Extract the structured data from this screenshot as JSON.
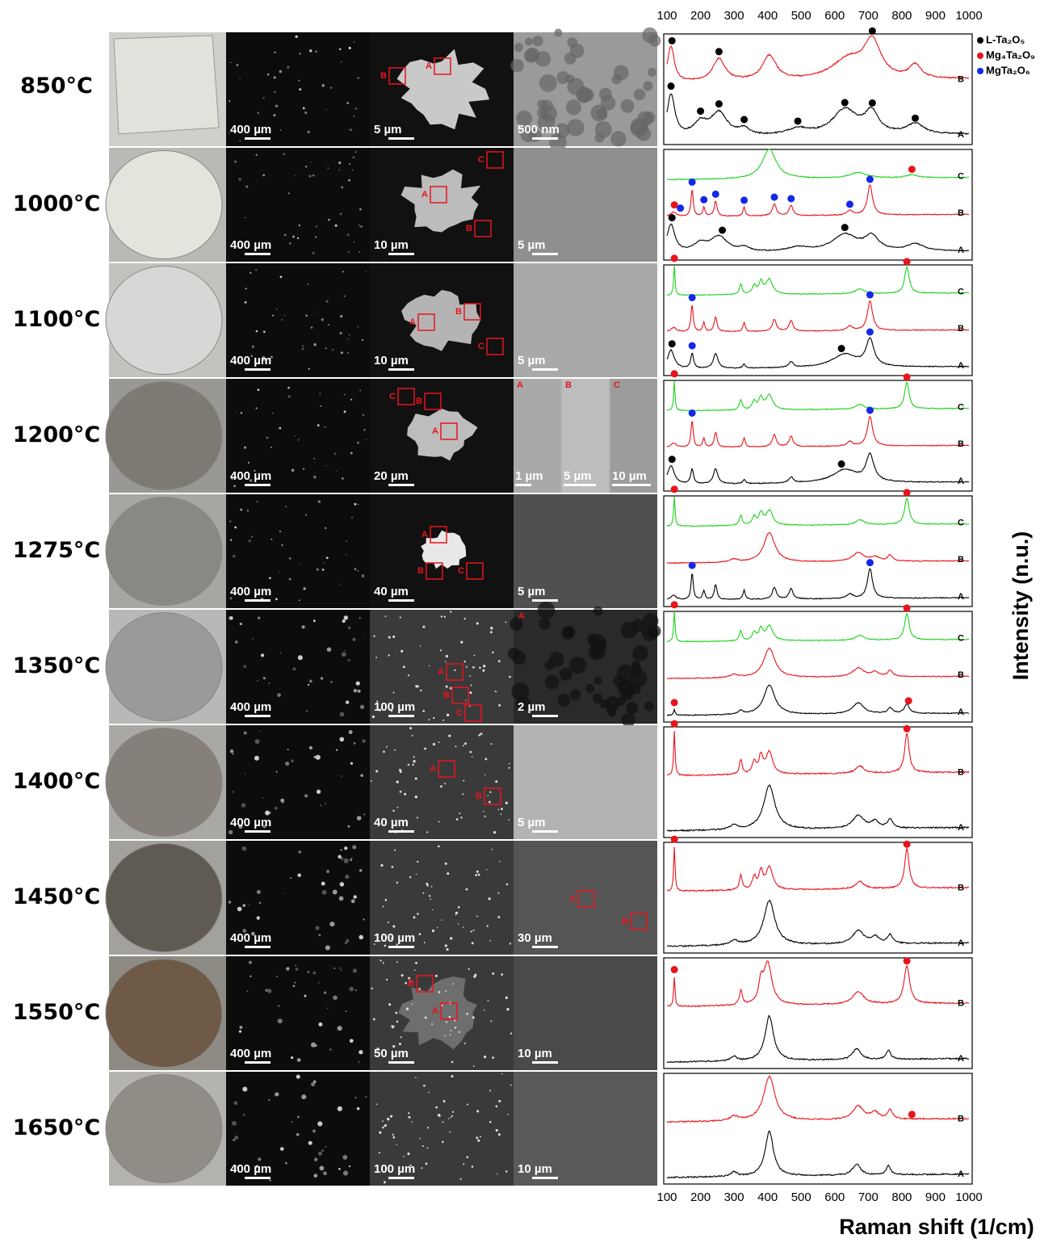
{
  "rows": [
    {
      "temperature": "850°C",
      "scale_bars": [
        "400 µm",
        "5 µm",
        "500 nm"
      ],
      "regions": [
        "A",
        "B"
      ],
      "spectra": [
        {
          "name": "B",
          "color": "#e8141c"
        },
        {
          "name": "A",
          "color": "#000000"
        }
      ]
    },
    {
      "temperature": "1000°C",
      "scale_bars": [
        "400 µm",
        "10 µm",
        "5 µm"
      ],
      "regions": [
        "C",
        "A",
        "B"
      ],
      "spectra": [
        {
          "name": "C",
          "color": "#1ed21e"
        },
        {
          "name": "B",
          "color": "#e8141c"
        },
        {
          "name": "A",
          "color": "#000000"
        }
      ]
    },
    {
      "temperature": "1100°C",
      "scale_bars": [
        "400 µm",
        "10 µm",
        "5 µm"
      ],
      "regions": [
        "A",
        "B",
        "C"
      ],
      "spectra": [
        {
          "name": "C",
          "color": "#1ed21e"
        },
        {
          "name": "B",
          "color": "#e8141c"
        },
        {
          "name": "A",
          "color": "#000000"
        }
      ]
    },
    {
      "temperature": "1200°C",
      "scale_bars": [
        "400 µm",
        "20 µm",
        "1 µm",
        "5 µm",
        "10 µm"
      ],
      "regions": [
        "C",
        "B",
        "A",
        "A",
        "B",
        "C"
      ],
      "spectra": [
        {
          "name": "C",
          "color": "#1ed21e"
        },
        {
          "name": "B",
          "color": "#e8141c"
        },
        {
          "name": "A",
          "color": "#000000"
        }
      ]
    },
    {
      "temperature": "1275°C",
      "scale_bars": [
        "400 µm",
        "40 µm",
        "5 µm"
      ],
      "regions": [
        "A",
        "B",
        "C"
      ],
      "spectra": [
        {
          "name": "C",
          "color": "#1ed21e"
        },
        {
          "name": "B",
          "color": "#e8141c"
        },
        {
          "name": "A",
          "color": "#000000"
        }
      ]
    },
    {
      "temperature": "1350°C",
      "scale_bars": [
        "400 µm",
        "100 µm",
        "2 µm"
      ],
      "regions": [
        "A",
        "B",
        "C",
        "A"
      ],
      "spectra": [
        {
          "name": "C",
          "color": "#1ed21e"
        },
        {
          "name": "B",
          "color": "#e8141c"
        },
        {
          "name": "A",
          "color": "#000000"
        }
      ]
    },
    {
      "temperature": "1400°C",
      "scale_bars": [
        "400 µm",
        "40 µm",
        "5 µm"
      ],
      "regions": [
        "A",
        "B"
      ],
      "spectra": [
        {
          "name": "B",
          "color": "#e8141c"
        },
        {
          "name": "A",
          "color": "#000000"
        }
      ]
    },
    {
      "temperature": "1450°C",
      "scale_bars": [
        "400 µm",
        "100 µm",
        "30 µm"
      ],
      "regions": [
        "A",
        "B"
      ],
      "spectra": [
        {
          "name": "B",
          "color": "#e8141c"
        },
        {
          "name": "A",
          "color": "#000000"
        }
      ]
    },
    {
      "temperature": "1550°C",
      "scale_bars": [
        "400 µm",
        "50 µm",
        "10 µm"
      ],
      "regions": [
        "B",
        "A"
      ],
      "spectra": [
        {
          "name": "B",
          "color": "#e8141c"
        },
        {
          "name": "A",
          "color": "#000000"
        }
      ]
    },
    {
      "temperature": "1650°C",
      "scale_bars": [
        "400 µm",
        "100 µm",
        "10 µm"
      ],
      "regions": [],
      "spectra": [
        {
          "name": "B",
          "color": "#e8141c"
        },
        {
          "name": "A",
          "color": "#000000"
        }
      ]
    }
  ],
  "raman": {
    "xlim": [
      100,
      1000
    ],
    "ticks": [
      100,
      200,
      300,
      400,
      500,
      600,
      700,
      800,
      900,
      1000
    ],
    "x_label": "Raman shift (1/cm)",
    "y_label": "Intensity (n.u.)"
  },
  "legend": [
    {
      "name": "L-Ta₂O₅",
      "color": "#000000"
    },
    {
      "name": "Mg₄Ta₂O₉",
      "color": "#e8141c"
    },
    {
      "name": "MgTa₂O₆",
      "color": "#1428e8"
    }
  ]
}
